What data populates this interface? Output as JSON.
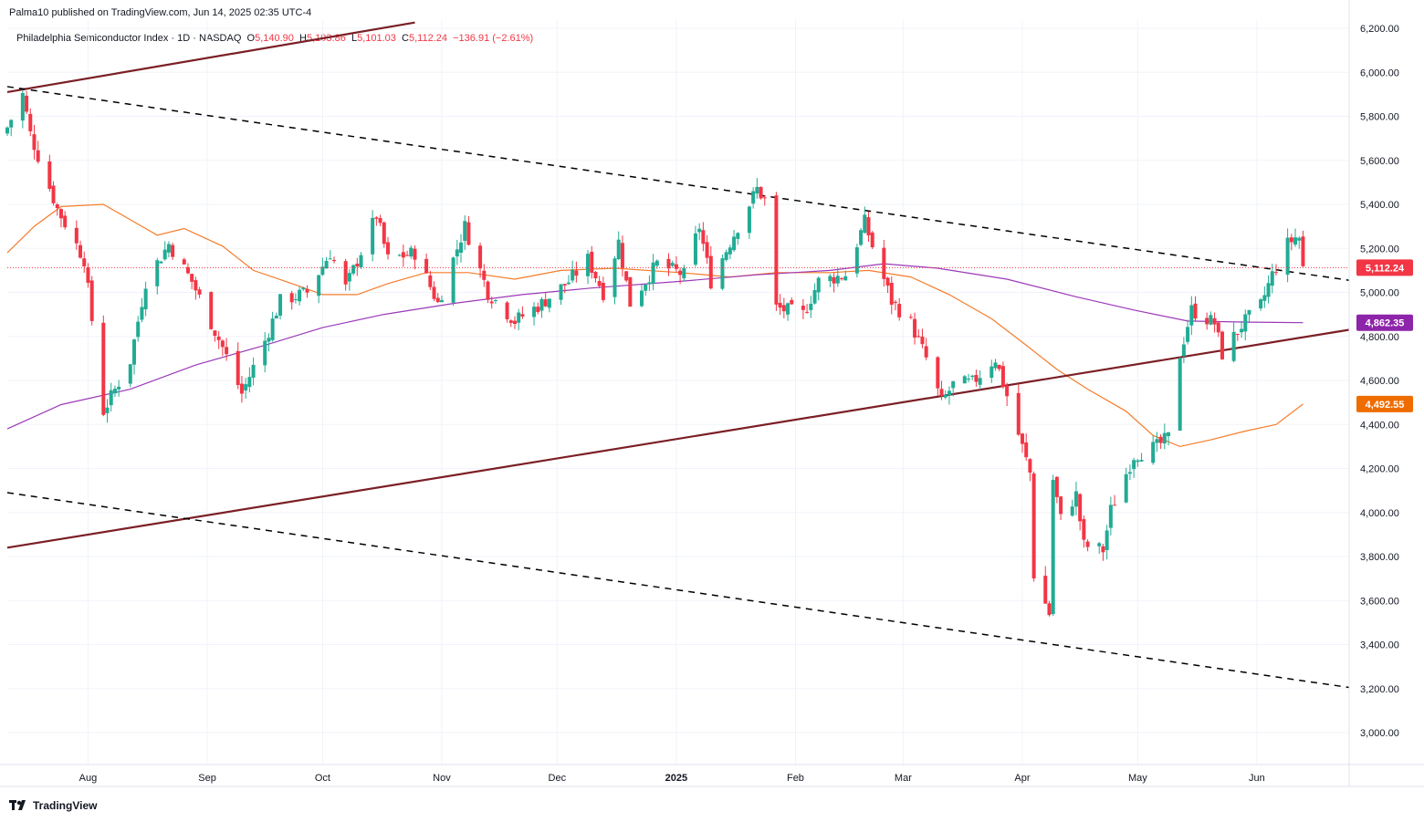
{
  "publisher_line": "Palma10 published on TradingView.com, Jun 14, 2025 02:35 UTC-4",
  "legend": {
    "symbol": "Philadelphia Semiconductor Index · 1D · NASDAQ",
    "open_label": "O",
    "open": "5,140.90",
    "high_label": "H",
    "high": "5,193.86",
    "low_label": "L",
    "low": "5,101.03",
    "close_label": "C",
    "close": "5,112.24",
    "change": "−136.91 (−2.61%)"
  },
  "footer": {
    "brand": "TradingView",
    "logo_icon": "tradingview-logo-icon"
  },
  "colors": {
    "up": "#22ab94",
    "down": "#f23645",
    "ma_short": "#f57c2b",
    "ma_long": "#9c39b8",
    "trend_solid": "#7b1f25",
    "dashed": "#000000",
    "last_price": "#f23645",
    "grid": "#f0f3fa"
  },
  "chart_data": {
    "type": "candlestick",
    "title": "Philadelphia Semiconductor Index",
    "x_ticks": [
      "Aug",
      "Sep",
      "Oct",
      "Nov",
      "Dec",
      "2025",
      "Feb",
      "Mar",
      "Apr",
      "May",
      "Jun"
    ],
    "y_ticks": [
      "6,200.00",
      "6,000.00",
      "5,800.00",
      "5,600.00",
      "5,400.00",
      "5,200.00",
      "5,000.00",
      "4,800.00",
      "4,600.00",
      "4,400.00",
      "4,200.00",
      "4,000.00",
      "3,800.00",
      "3,600.00",
      "3,400.00",
      "3,200.00",
      "3,000.00"
    ],
    "y_range": [
      2850,
      6200
    ],
    "price_labels": [
      {
        "name": "last-price",
        "text": "5,112.24",
        "value": 5112.24,
        "color": "#f23645"
      },
      {
        "name": "ma-long",
        "text": "4,862.35",
        "value": 4862.35,
        "color": "#8e24aa"
      },
      {
        "name": "ma-short",
        "text": "4,492.55",
        "value": 4492.55,
        "color": "#ef6c00"
      }
    ],
    "trendlines": [
      {
        "name": "upper-solid-trendline",
        "style": "solid",
        "points": [
          [
            "2024-07-11",
            5910
          ],
          [
            "2024-10-25",
            6226
          ]
        ]
      },
      {
        "name": "lower-solid-trendline",
        "style": "solid",
        "points": [
          [
            "2024-07-11",
            3840
          ],
          [
            "2025-06-25",
            4830
          ]
        ]
      },
      {
        "name": "upper-dashed-trendline",
        "style": "dashed",
        "points": [
          [
            "2024-07-11",
            5935
          ],
          [
            "2025-06-25",
            5055
          ]
        ]
      },
      {
        "name": "lower-dashed-trendline",
        "style": "dashed",
        "points": [
          [
            "2024-07-11",
            4090
          ],
          [
            "2025-06-25",
            3205
          ]
        ]
      }
    ],
    "series": [
      {
        "name": "",
        "kind": "ohlc_keypoints",
        "values": [
          [
            "2024-07-11",
            5750
          ],
          [
            "2024-07-15",
            5900
          ],
          [
            "2024-07-17",
            5720
          ],
          [
            "2024-07-19",
            5620
          ],
          [
            "2024-07-24",
            5380
          ],
          [
            "2024-07-31",
            5150
          ],
          [
            "2024-08-05",
            4460
          ],
          [
            "2024-08-12",
            4690
          ],
          [
            "2024-08-16",
            5050
          ],
          [
            "2024-08-22",
            5220
          ],
          [
            "2024-08-28",
            5050
          ],
          [
            "2024-09-05",
            4750
          ],
          [
            "2024-09-10",
            4540
          ],
          [
            "2024-09-16",
            4780
          ],
          [
            "2024-09-20",
            4960
          ],
          [
            "2024-09-27",
            5000
          ],
          [
            "2024-10-03",
            5180
          ],
          [
            "2024-10-07",
            5020
          ],
          [
            "2024-10-15",
            5350
          ],
          [
            "2024-10-18",
            5150
          ],
          [
            "2024-10-25",
            5180
          ],
          [
            "2024-10-31",
            4950
          ],
          [
            "2024-11-07",
            5300
          ],
          [
            "2024-11-13",
            5000
          ],
          [
            "2024-11-20",
            4870
          ],
          [
            "2024-11-27",
            4950
          ],
          [
            "2024-12-04",
            5050
          ],
          [
            "2024-12-09",
            5150
          ],
          [
            "2024-12-13",
            5000
          ],
          [
            "2024-12-17",
            5230
          ],
          [
            "2024-12-20",
            4950
          ],
          [
            "2024-12-27",
            5130
          ],
          [
            "2025-01-03",
            5080
          ],
          [
            "2025-01-07",
            5300
          ],
          [
            "2025-01-10",
            5050
          ],
          [
            "2025-01-17",
            5300
          ],
          [
            "2025-01-22",
            5470
          ],
          [
            "2025-01-24",
            5420
          ],
          [
            "2025-01-27",
            4930
          ],
          [
            "2025-02-03",
            4900
          ],
          [
            "2025-02-07",
            5050
          ],
          [
            "2025-02-14",
            5080
          ],
          [
            "2025-02-19",
            5320
          ],
          [
            "2025-02-21",
            5210
          ],
          [
            "2025-02-26",
            4960
          ],
          [
            "2025-03-03",
            4860
          ],
          [
            "2025-03-07",
            4700
          ],
          [
            "2025-03-11",
            4500
          ],
          [
            "2025-03-14",
            4580
          ],
          [
            "2025-03-19",
            4590
          ],
          [
            "2025-03-25",
            4700
          ],
          [
            "2025-03-28",
            4530
          ],
          [
            "2025-04-03",
            4180
          ],
          [
            "2025-04-04",
            3720
          ],
          [
            "2025-04-08",
            3540
          ],
          [
            "2025-04-09",
            4150
          ],
          [
            "2025-04-11",
            3970
          ],
          [
            "2025-04-15",
            4080
          ],
          [
            "2025-04-17",
            3850
          ],
          [
            "2025-04-22",
            3830
          ],
          [
            "2025-04-24",
            4010
          ],
          [
            "2025-04-30",
            4260
          ],
          [
            "2025-05-06",
            4300
          ],
          [
            "2025-05-09",
            4340
          ],
          [
            "2025-05-12",
            4720
          ],
          [
            "2025-05-15",
            4920
          ],
          [
            "2025-05-21",
            4860
          ],
          [
            "2025-05-23",
            4720
          ],
          [
            "2025-05-28",
            4850
          ],
          [
            "2025-06-02",
            4940
          ],
          [
            "2025-06-05",
            5080
          ],
          [
            "2025-06-09",
            5220
          ],
          [
            "2025-06-11",
            5250
          ],
          [
            "2025-06-12",
            5249
          ],
          [
            "2025-06-13",
            5112
          ]
        ]
      },
      {
        "name": "",
        "kind": "moving_average_short",
        "values": [
          [
            "2024-07-11",
            5180
          ],
          [
            "2024-07-18",
            5300
          ],
          [
            "2024-07-25",
            5390
          ],
          [
            "2024-08-05",
            5400
          ],
          [
            "2024-08-12",
            5330
          ],
          [
            "2024-08-19",
            5260
          ],
          [
            "2024-08-26",
            5290
          ],
          [
            "2024-09-05",
            5210
          ],
          [
            "2024-09-13",
            5100
          ],
          [
            "2024-09-23",
            5040
          ],
          [
            "2024-10-01",
            4990
          ],
          [
            "2024-10-10",
            4990
          ],
          [
            "2024-10-18",
            5040
          ],
          [
            "2024-10-28",
            5090
          ],
          [
            "2024-11-08",
            5090
          ],
          [
            "2024-11-20",
            5060
          ],
          [
            "2024-12-02",
            5100
          ],
          [
            "2024-12-16",
            5110
          ],
          [
            "2025-01-02",
            5090
          ],
          [
            "2025-01-15",
            5070
          ],
          [
            "2025-01-27",
            5090
          ],
          [
            "2025-02-10",
            5090
          ],
          [
            "2025-02-20",
            5100
          ],
          [
            "2025-03-03",
            5070
          ],
          [
            "2025-03-13",
            4990
          ],
          [
            "2025-03-24",
            4880
          ],
          [
            "2025-04-02",
            4760
          ],
          [
            "2025-04-10",
            4650
          ],
          [
            "2025-04-18",
            4560
          ],
          [
            "2025-04-28",
            4460
          ],
          [
            "2025-05-05",
            4350
          ],
          [
            "2025-05-12",
            4300
          ],
          [
            "2025-05-20",
            4330
          ],
          [
            "2025-05-29",
            4370
          ],
          [
            "2025-06-06",
            4400
          ],
          [
            "2025-06-13",
            4492.55
          ]
        ]
      },
      {
        "name": "",
        "kind": "moving_average_long",
        "values": [
          [
            "2024-07-11",
            4380
          ],
          [
            "2024-07-25",
            4490
          ],
          [
            "2024-08-12",
            4560
          ],
          [
            "2024-08-29",
            4670
          ],
          [
            "2024-09-16",
            4760
          ],
          [
            "2024-10-01",
            4840
          ],
          [
            "2024-10-17",
            4900
          ],
          [
            "2024-11-04",
            4950
          ],
          [
            "2024-11-22",
            4990
          ],
          [
            "2024-12-10",
            5020
          ],
          [
            "2025-01-02",
            5050
          ],
          [
            "2025-01-22",
            5080
          ],
          [
            "2025-02-10",
            5100
          ],
          [
            "2025-02-24",
            5130
          ],
          [
            "2025-03-10",
            5110
          ],
          [
            "2025-03-28",
            5060
          ],
          [
            "2025-04-15",
            4980
          ],
          [
            "2025-04-30",
            4920
          ],
          [
            "2025-05-14",
            4870
          ],
          [
            "2025-05-30",
            4865
          ],
          [
            "2025-06-13",
            4862.35
          ]
        ]
      }
    ],
    "grid": true,
    "last_price_line": 5112.24
  }
}
